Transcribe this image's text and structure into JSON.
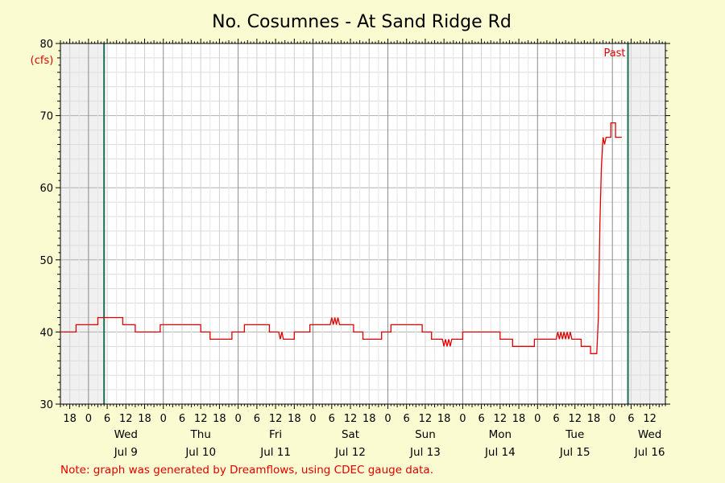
{
  "chart_data": {
    "type": "line",
    "title": "No. Cosumnes - At Sand Ridge Rd",
    "ylabel": "(cfs)",
    "ylim": [
      30,
      80
    ],
    "yticks": [
      30,
      40,
      50,
      60,
      70,
      80
    ],
    "xlim": [
      "2025-07-08T15:00",
      "2025-07-16T17:00"
    ],
    "x_hour_ticks": [
      "0",
      "6",
      "12",
      "18"
    ],
    "days": [
      {
        "weekday": "Wed",
        "date": "Jul 9"
      },
      {
        "weekday": "Thu",
        "date": "Jul 10"
      },
      {
        "weekday": "Fri",
        "date": "Jul 11"
      },
      {
        "weekday": "Sat",
        "date": "Jul 12"
      },
      {
        "weekday": "Sun",
        "date": "Jul 13"
      },
      {
        "weekday": "Mon",
        "date": "Jul 14"
      },
      {
        "weekday": "Tue",
        "date": "Jul 15"
      },
      {
        "weekday": "Wed",
        "date": "Jul 16"
      }
    ],
    "shaded_before": "2025-07-09T05:00",
    "shaded_after": "2025-07-16T05:00",
    "marker_label": "Past",
    "grid": true,
    "note": "Note: graph was generated by Dreamflows, using CDEC gauge data.",
    "series": [
      {
        "color": "#e00000",
        "points": [
          [
            "2025-07-08T15:00",
            40
          ],
          [
            "2025-07-08T20:00",
            40
          ],
          [
            "2025-07-08T20:00",
            41
          ],
          [
            "2025-07-09T03:00",
            41
          ],
          [
            "2025-07-09T03:00",
            42
          ],
          [
            "2025-07-09T11:00",
            42
          ],
          [
            "2025-07-09T11:00",
            41
          ],
          [
            "2025-07-09T15:00",
            41
          ],
          [
            "2025-07-09T15:00",
            40
          ],
          [
            "2025-07-09T23:00",
            40
          ],
          [
            "2025-07-09T23:00",
            41
          ],
          [
            "2025-07-10T12:00",
            41
          ],
          [
            "2025-07-10T12:00",
            40
          ],
          [
            "2025-07-10T15:00",
            40
          ],
          [
            "2025-07-10T15:00",
            39
          ],
          [
            "2025-07-10T22:00",
            39
          ],
          [
            "2025-07-10T22:00",
            40
          ],
          [
            "2025-07-11T02:00",
            40
          ],
          [
            "2025-07-11T02:00",
            41
          ],
          [
            "2025-07-11T10:00",
            41
          ],
          [
            "2025-07-11T10:00",
            40
          ],
          [
            "2025-07-11T13:00",
            40
          ],
          [
            "2025-07-11T13:30",
            39
          ],
          [
            "2025-07-11T14:00",
            40
          ],
          [
            "2025-07-11T14:30",
            39
          ],
          [
            "2025-07-11T18:00",
            39
          ],
          [
            "2025-07-11T18:00",
            40
          ],
          [
            "2025-07-11T23:00",
            40
          ],
          [
            "2025-07-11T23:00",
            41
          ],
          [
            "2025-07-12T05:30",
            41
          ],
          [
            "2025-07-12T06:00",
            42
          ],
          [
            "2025-07-12T06:30",
            41
          ],
          [
            "2025-07-12T07:00",
            42
          ],
          [
            "2025-07-12T07:30",
            41
          ],
          [
            "2025-07-12T08:00",
            42
          ],
          [
            "2025-07-12T08:30",
            41
          ],
          [
            "2025-07-12T13:00",
            41
          ],
          [
            "2025-07-12T13:00",
            40
          ],
          [
            "2025-07-12T16:00",
            40
          ],
          [
            "2025-07-12T16:00",
            39
          ],
          [
            "2025-07-12T22:00",
            39
          ],
          [
            "2025-07-12T22:00",
            40
          ],
          [
            "2025-07-13T01:00",
            40
          ],
          [
            "2025-07-13T01:00",
            41
          ],
          [
            "2025-07-13T11:00",
            41
          ],
          [
            "2025-07-13T11:00",
            40
          ],
          [
            "2025-07-13T14:00",
            40
          ],
          [
            "2025-07-13T14:00",
            39
          ],
          [
            "2025-07-13T17:30",
            39
          ],
          [
            "2025-07-13T18:00",
            38
          ],
          [
            "2025-07-13T18:30",
            39
          ],
          [
            "2025-07-13T19:00",
            38
          ],
          [
            "2025-07-13T19:30",
            39
          ],
          [
            "2025-07-13T20:00",
            38
          ],
          [
            "2025-07-13T20:30",
            39
          ],
          [
            "2025-07-14T00:00",
            39
          ],
          [
            "2025-07-14T00:00",
            40
          ],
          [
            "2025-07-14T12:00",
            40
          ],
          [
            "2025-07-14T12:00",
            39
          ],
          [
            "2025-07-14T16:00",
            39
          ],
          [
            "2025-07-14T16:00",
            38
          ],
          [
            "2025-07-14T23:00",
            38
          ],
          [
            "2025-07-14T23:00",
            39
          ],
          [
            "2025-07-15T06:00",
            39
          ],
          [
            "2025-07-15T06:30",
            40
          ],
          [
            "2025-07-15T07:00",
            39
          ],
          [
            "2025-07-15T07:30",
            40
          ],
          [
            "2025-07-15T08:00",
            39
          ],
          [
            "2025-07-15T08:30",
            40
          ],
          [
            "2025-07-15T09:00",
            39
          ],
          [
            "2025-07-15T09:30",
            40
          ],
          [
            "2025-07-15T10:00",
            39
          ],
          [
            "2025-07-15T10:30",
            40
          ],
          [
            "2025-07-15T11:00",
            39
          ],
          [
            "2025-07-15T14:00",
            39
          ],
          [
            "2025-07-15T14:00",
            38
          ],
          [
            "2025-07-15T17:00",
            38
          ],
          [
            "2025-07-15T17:00",
            37
          ],
          [
            "2025-07-15T19:00",
            37
          ],
          [
            "2025-07-15T19:30",
            42
          ],
          [
            "2025-07-15T20:00",
            55
          ],
          [
            "2025-07-15T20:30",
            63
          ],
          [
            "2025-07-15T21:00",
            67
          ],
          [
            "2025-07-15T21:30",
            66
          ],
          [
            "2025-07-15T22:00",
            67
          ],
          [
            "2025-07-15T23:30",
            67
          ],
          [
            "2025-07-15T23:30",
            69
          ],
          [
            "2025-07-16T01:00",
            69
          ],
          [
            "2025-07-16T01:00",
            67
          ],
          [
            "2025-07-16T03:00",
            67
          ]
        ]
      }
    ]
  }
}
